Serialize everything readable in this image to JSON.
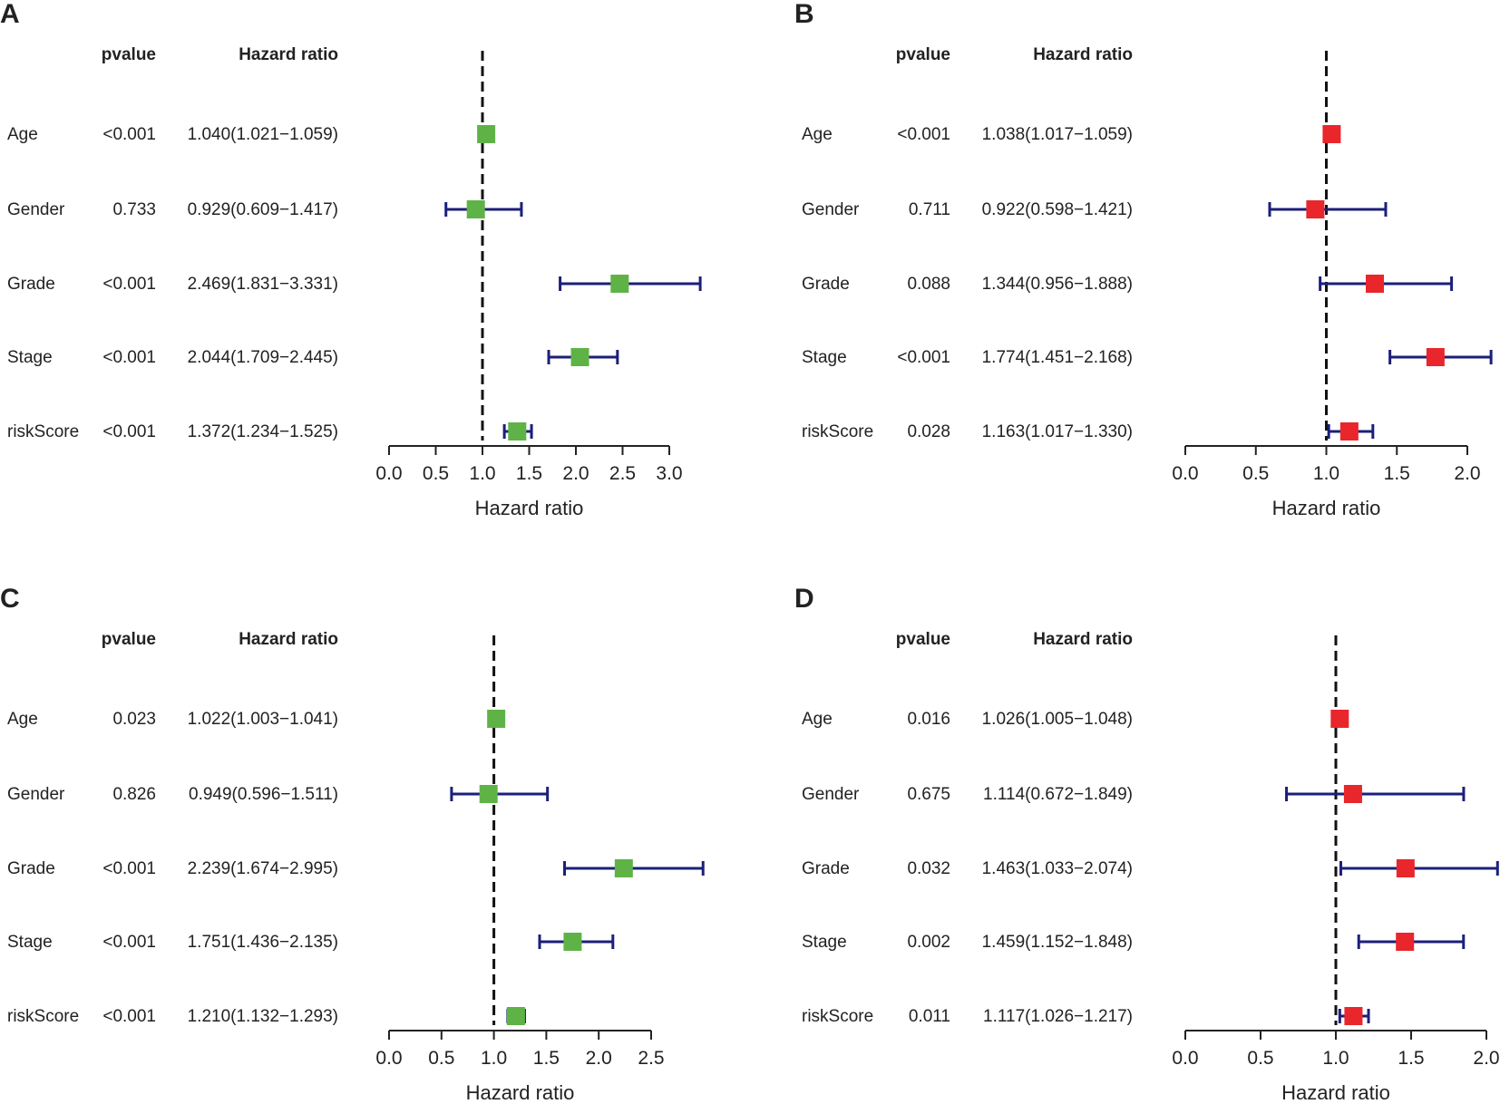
{
  "chart_data": [
    {
      "type": "forest",
      "panel": "A",
      "header_pvalue": "pvalue",
      "header_hr": "Hazard ratio",
      "xlabel": "Hazard ratio",
      "reference_line": 1.0,
      "xlim": [
        0,
        3
      ],
      "ticks": [
        "0.0",
        "0.5",
        "1.0",
        "1.5",
        "2.0",
        "2.5",
        "3.0"
      ],
      "marker_color": "#5fb346",
      "whisker_color": "#1c1f7a",
      "rows": [
        {
          "label": "Age",
          "pvalue": "<0.001",
          "hr_text": "1.040(1.021−1.059)",
          "hr": 1.04,
          "lo": 1.021,
          "hi": 1.059
        },
        {
          "label": "Gender",
          "pvalue": "0.733",
          "hr_text": "0.929(0.609−1.417)",
          "hr": 0.929,
          "lo": 0.609,
          "hi": 1.417
        },
        {
          "label": "Grade",
          "pvalue": "<0.001",
          "hr_text": "2.469(1.831−3.331)",
          "hr": 2.469,
          "lo": 1.831,
          "hi": 3.331
        },
        {
          "label": "Stage",
          "pvalue": "<0.001",
          "hr_text": "2.044(1.709−2.445)",
          "hr": 2.044,
          "lo": 1.709,
          "hi": 2.445
        },
        {
          "label": "riskScore",
          "pvalue": "<0.001",
          "hr_text": "1.372(1.234−1.525)",
          "hr": 1.372,
          "lo": 1.234,
          "hi": 1.525
        }
      ]
    },
    {
      "type": "forest",
      "panel": "B",
      "header_pvalue": "pvalue",
      "header_hr": "Hazard ratio",
      "xlabel": "Hazard ratio",
      "reference_line": 1.0,
      "xlim": [
        0,
        2
      ],
      "ticks": [
        "0.0",
        "0.5",
        "1.0",
        "1.5",
        "2.0"
      ],
      "marker_color": "#e8262c",
      "whisker_color": "#1c1f7a",
      "rows": [
        {
          "label": "Age",
          "pvalue": "<0.001",
          "hr_text": "1.038(1.017−1.059)",
          "hr": 1.038,
          "lo": 1.017,
          "hi": 1.059
        },
        {
          "label": "Gender",
          "pvalue": "0.711",
          "hr_text": "0.922(0.598−1.421)",
          "hr": 0.922,
          "lo": 0.598,
          "hi": 1.421
        },
        {
          "label": "Grade",
          "pvalue": "0.088",
          "hr_text": "1.344(0.956−1.888)",
          "hr": 1.344,
          "lo": 0.956,
          "hi": 1.888
        },
        {
          "label": "Stage",
          "pvalue": "<0.001",
          "hr_text": "1.774(1.451−2.168)",
          "hr": 1.774,
          "lo": 1.451,
          "hi": 2.168
        },
        {
          "label": "riskScore",
          "pvalue": "0.028",
          "hr_text": "1.163(1.017−1.330)",
          "hr": 1.163,
          "lo": 1.017,
          "hi": 1.33
        }
      ]
    },
    {
      "type": "forest",
      "panel": "C",
      "header_pvalue": "pvalue",
      "header_hr": "Hazard ratio",
      "xlabel": "Hazard ratio",
      "reference_line": 1.0,
      "xlim": [
        0,
        2.5
      ],
      "ticks": [
        "0.0",
        "0.5",
        "1.0",
        "1.5",
        "2.0",
        "2.5"
      ],
      "marker_color": "#5fb346",
      "whisker_color": "#1c1f7a",
      "rows": [
        {
          "label": "Age",
          "pvalue": "0.023",
          "hr_text": "1.022(1.003−1.041)",
          "hr": 1.022,
          "lo": 1.003,
          "hi": 1.041
        },
        {
          "label": "Gender",
          "pvalue": "0.826",
          "hr_text": "0.949(0.596−1.511)",
          "hr": 0.949,
          "lo": 0.596,
          "hi": 1.511
        },
        {
          "label": "Grade",
          "pvalue": "<0.001",
          "hr_text": "2.239(1.674−2.995)",
          "hr": 2.239,
          "lo": 1.674,
          "hi": 2.995
        },
        {
          "label": "Stage",
          "pvalue": "<0.001",
          "hr_text": "1.751(1.436−2.135)",
          "hr": 1.751,
          "lo": 1.436,
          "hi": 2.135
        },
        {
          "label": "riskScore",
          "pvalue": "<0.001",
          "hr_text": "1.210(1.132−1.293)",
          "hr": 1.21,
          "lo": 1.132,
          "hi": 1.293
        }
      ]
    },
    {
      "type": "forest",
      "panel": "D",
      "header_pvalue": "pvalue",
      "header_hr": "Hazard ratio",
      "xlabel": "Hazard ratio",
      "reference_line": 1.0,
      "xlim": [
        0,
        2
      ],
      "ticks": [
        "0.0",
        "0.5",
        "1.0",
        "1.5",
        "2.0"
      ],
      "marker_color": "#e8262c",
      "whisker_color": "#1c1f7a",
      "rows": [
        {
          "label": "Age",
          "pvalue": "0.016",
          "hr_text": "1.026(1.005−1.048)",
          "hr": 1.026,
          "lo": 1.005,
          "hi": 1.048
        },
        {
          "label": "Gender",
          "pvalue": "0.675",
          "hr_text": "1.114(0.672−1.849)",
          "hr": 1.114,
          "lo": 0.672,
          "hi": 1.849
        },
        {
          "label": "Grade",
          "pvalue": "0.032",
          "hr_text": "1.463(1.033−2.074)",
          "hr": 1.463,
          "lo": 1.033,
          "hi": 2.074
        },
        {
          "label": "Stage",
          "pvalue": "0.002",
          "hr_text": "1.459(1.152−1.848)",
          "hr": 1.459,
          "lo": 1.152,
          "hi": 1.848
        },
        {
          "label": "riskScore",
          "pvalue": "0.011",
          "hr_text": "1.117(1.026−1.217)",
          "hr": 1.117,
          "lo": 1.026,
          "hi": 1.217
        }
      ]
    }
  ]
}
